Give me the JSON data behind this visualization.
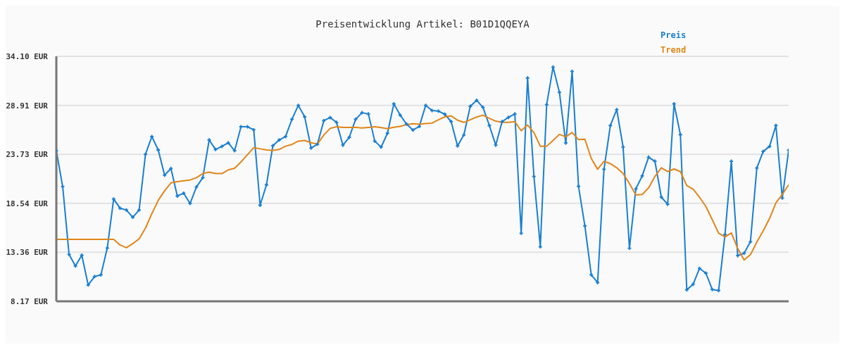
{
  "chart_data": {
    "type": "line",
    "title": "Preisentwicklung Artikel: B01D1QQEYA",
    "categories": [
      null,
      null,
      null,
      null,
      null,
      null,
      null,
      null,
      null,
      null,
      null,
      null,
      null,
      null,
      null,
      null,
      null,
      null,
      null,
      null,
      null,
      null,
      null,
      null,
      null,
      null,
      null,
      null,
      null,
      null,
      null,
      null,
      null,
      null,
      null,
      null,
      null,
      null,
      null,
      null,
      null,
      null,
      null,
      null,
      null,
      null,
      null,
      null,
      null,
      null,
      null,
      null,
      null,
      null,
      null,
      null,
      null,
      null,
      null,
      null,
      null,
      null,
      null,
      null,
      null,
      null,
      null,
      null,
      null,
      null,
      null,
      null,
      null,
      null,
      null,
      null,
      null,
      null,
      null,
      null,
      null,
      null,
      null,
      null,
      null,
      null,
      null,
      null,
      null,
      null,
      null,
      null,
      null,
      null,
      null,
      null,
      null,
      null,
      null,
      null,
      null,
      null,
      null,
      null,
      null,
      null,
      null,
      null,
      null,
      null,
      null,
      null,
      null,
      null,
      null,
      null
    ],
    "series": [
      {
        "name": "Preis",
        "color": "#1a7fcf",
        "values": [
          24.11,
          20.3,
          13.13,
          11.91,
          13.05,
          9.9,
          10.79,
          10.97,
          13.81,
          19.0,
          18.03,
          17.83,
          17.07,
          17.83,
          23.73,
          25.61,
          24.19,
          21.52,
          22.23,
          19.31,
          19.61,
          18.52,
          20.27,
          21.26,
          25.25,
          24.24,
          24.57,
          24.95,
          24.11,
          26.65,
          26.65,
          26.32,
          18.34,
          20.5,
          24.64,
          25.25,
          25.61,
          27.44,
          28.91,
          27.69,
          24.39,
          24.8,
          27.29,
          27.62,
          27.11,
          24.7,
          25.53,
          27.44,
          28.13,
          28.0,
          25.13,
          24.49,
          25.96,
          29.07,
          27.87,
          26.93,
          26.3,
          26.68,
          28.91,
          28.36,
          28.3,
          27.97,
          27.19,
          24.62,
          25.79,
          28.81,
          29.45,
          28.69,
          26.78,
          24.7,
          27.19,
          27.64,
          28.0,
          15.37,
          31.81,
          21.39,
          13.94,
          28.99,
          32.96,
          30.29,
          24.92,
          32.5,
          20.35,
          16.15,
          10.97,
          10.15,
          22.15,
          26.78,
          28.46,
          24.49,
          13.79,
          20.07,
          21.44,
          23.42,
          22.99,
          19.2,
          18.44,
          29.07,
          25.81,
          9.39,
          9.98,
          11.65,
          11.15,
          9.42,
          9.31,
          15.24,
          22.99,
          13.0,
          13.26,
          14.48,
          22.28,
          24.03,
          24.57,
          26.78,
          19.1,
          24.16
        ]
      },
      {
        "name": "Trend",
        "color": "#e0861a",
        "marker": "none",
        "values": [
          14.73,
          14.73,
          14.73,
          14.73,
          14.73,
          14.73,
          14.73,
          14.73,
          14.73,
          14.73,
          14.14,
          13.84,
          14.27,
          14.78,
          15.92,
          17.45,
          18.85,
          19.86,
          20.7,
          20.83,
          20.93,
          21.01,
          21.26,
          21.69,
          21.85,
          21.69,
          21.69,
          22.08,
          22.25,
          22.92,
          23.68,
          24.44,
          24.31,
          24.19,
          24.14,
          24.24,
          24.59,
          24.77,
          25.13,
          25.2,
          24.95,
          24.82,
          25.76,
          26.47,
          26.65,
          26.58,
          26.58,
          26.58,
          26.52,
          26.58,
          26.65,
          26.55,
          26.45,
          26.6,
          26.68,
          26.88,
          26.96,
          26.91,
          26.98,
          27.03,
          27.39,
          27.69,
          27.8,
          27.34,
          27.11,
          27.39,
          27.67,
          27.87,
          27.54,
          27.24,
          27.11,
          27.11,
          27.19,
          26.22,
          26.83,
          26.02,
          24.59,
          24.59,
          25.2,
          25.84,
          25.58,
          26.04,
          25.28,
          25.33,
          23.3,
          22.15,
          22.99,
          22.74,
          22.3,
          21.69,
          20.63,
          19.43,
          19.48,
          20.17,
          21.39,
          22.3,
          21.9,
          22.18,
          21.9,
          20.42,
          20.04,
          19.18,
          18.21,
          16.81,
          15.39,
          14.98,
          15.41,
          13.76,
          12.54,
          13.1,
          14.45,
          15.62,
          16.94,
          18.59,
          19.48,
          20.5
        ]
      }
    ],
    "ylim": [
      8.17,
      34.1
    ],
    "yticks": [
      {
        "value": 8.17,
        "label": "8.17 EUR"
      },
      {
        "value": 13.36,
        "label": "13.36 EUR"
      },
      {
        "value": 18.54,
        "label": "18.54 EUR"
      },
      {
        "value": 23.73,
        "label": "23.73 EUR"
      },
      {
        "value": 28.91,
        "label": "28.91 EUR"
      },
      {
        "value": 34.1,
        "label": "34.10 EUR"
      }
    ],
    "grid": "y",
    "legend": "top right",
    "marker": "cross",
    "line_style": "solid"
  }
}
